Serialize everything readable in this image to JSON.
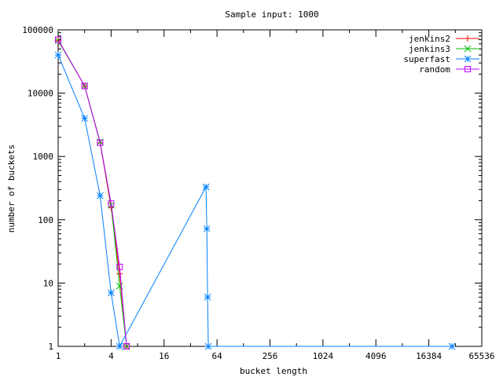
{
  "chart_data": {
    "type": "line",
    "title": "Sample input: 1000",
    "xlabel": "bucket length",
    "ylabel": "number of buckets",
    "x_scale": "log2",
    "y_scale": "log10",
    "xlim": [
      1,
      65536
    ],
    "ylim": [
      1,
      100000
    ],
    "x_ticks": [
      1,
      4,
      16,
      64,
      256,
      1024,
      4096,
      16384,
      65536
    ],
    "x_tick_labels": [
      "1",
      "4",
      "16",
      "64",
      "256",
      "1024",
      "4096",
      "16384",
      "65536"
    ],
    "y_ticks": [
      1,
      10,
      100,
      1000,
      10000,
      100000
    ],
    "y_tick_labels": [
      "1",
      "10",
      "100",
      "1000",
      "10000",
      "100000"
    ],
    "grid": false,
    "legend_position": "top-right",
    "series": [
      {
        "name": "jenkins2",
        "color": "#ff0000",
        "marker": "plus",
        "points": [
          [
            1,
            68000
          ],
          [
            2,
            13000
          ],
          [
            3,
            1650
          ],
          [
            4,
            155
          ],
          [
            5,
            14
          ],
          [
            6,
            1
          ]
        ]
      },
      {
        "name": "jenkins3",
        "color": "#00c000",
        "marker": "cross",
        "points": [
          [
            1,
            68000
          ],
          [
            2,
            13000
          ],
          [
            3,
            1700
          ],
          [
            4,
            170
          ],
          [
            5,
            9
          ],
          [
            6,
            1
          ]
        ]
      },
      {
        "name": "superfast",
        "color": "#0080ff",
        "marker": "star",
        "points": [
          [
            1,
            40000
          ],
          [
            2,
            4000
          ],
          [
            3,
            240
          ],
          [
            4,
            7
          ],
          [
            5,
            1
          ],
          [
            48,
            330
          ],
          [
            49,
            72
          ],
          [
            50,
            6
          ],
          [
            51,
            1
          ],
          [
            30000,
            1
          ]
        ]
      },
      {
        "name": "random",
        "color": "#c000ff",
        "marker": "square",
        "points": [
          [
            1,
            70000
          ],
          [
            2,
            13000
          ],
          [
            3,
            1650
          ],
          [
            4,
            180
          ],
          [
            5,
            18
          ],
          [
            6,
            1
          ]
        ]
      }
    ]
  }
}
